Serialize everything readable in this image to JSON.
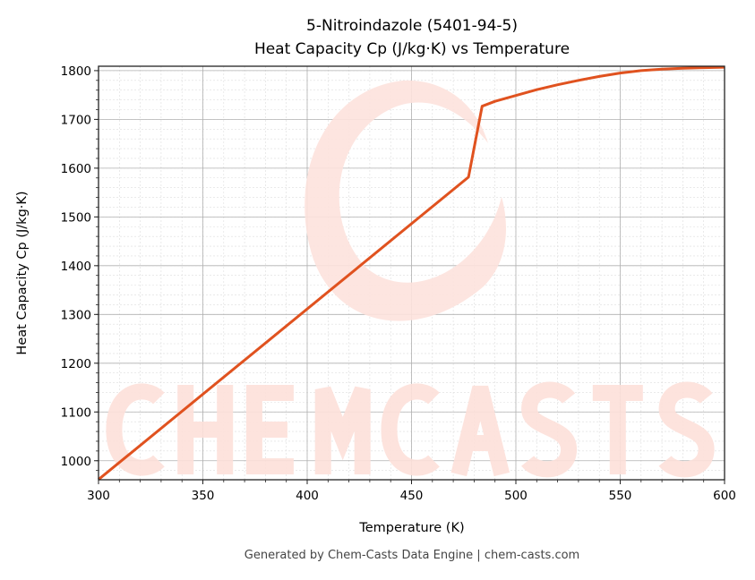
{
  "chart_data": {
    "type": "line",
    "title": "5-Nitroindazole (5401-94-5)",
    "subtitle": "Heat Capacity Cp (J/kg·K) vs Temperature",
    "xlabel": "Temperature (K)",
    "ylabel": "Heat Capacity Cp (J/kg·K)",
    "xlim": [
      300,
      600
    ],
    "ylim": [
      961,
      1809
    ],
    "xticks": [
      300,
      350,
      400,
      450,
      500,
      550,
      600
    ],
    "yticks": [
      1000,
      1100,
      1200,
      1300,
      1400,
      1500,
      1600,
      1700,
      1800
    ],
    "grid": true,
    "series": [
      {
        "name": "Cp",
        "color": "#e0521f",
        "x": [
          300,
          477.3,
          483.8,
          490,
          500,
          510,
          520,
          530,
          540,
          550,
          560,
          570,
          580,
          590,
          600
        ],
        "y": [
          961.5,
          1581.6,
          1727,
          1737,
          1749,
          1761,
          1771,
          1780,
          1788,
          1795,
          1800,
          1803,
          1805,
          1806,
          1807
        ]
      }
    ],
    "watermark": "CHEMCASTS"
  },
  "footer": "Generated by Chem-Casts Data Engine | chem-casts.com"
}
